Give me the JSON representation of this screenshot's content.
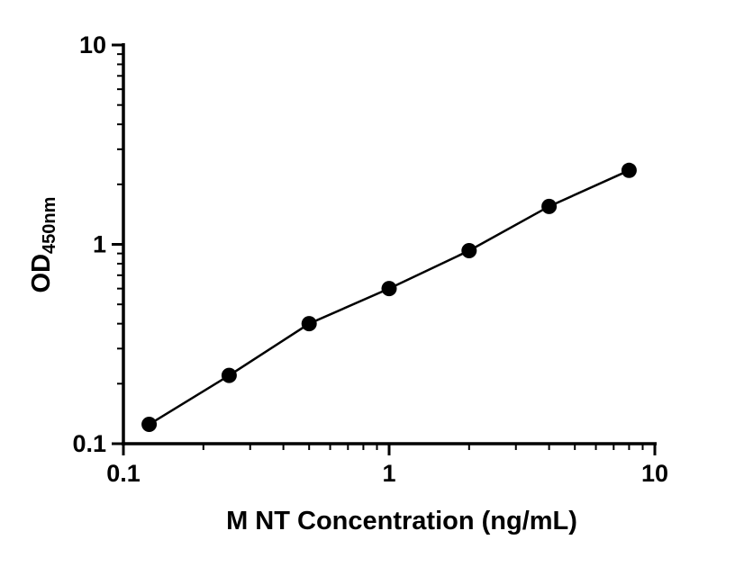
{
  "chart_data": {
    "type": "scatter",
    "title": "",
    "xlabel": "M NT Concentration (ng/mL)",
    "ylabel_main": "OD",
    "ylabel_sub": "450nm",
    "xscale": "log",
    "yscale": "log",
    "xlim": [
      0.1,
      10
    ],
    "ylim": [
      0.1,
      10
    ],
    "x": [
      0.125,
      0.25,
      0.5,
      1,
      2,
      4,
      8
    ],
    "y": [
      0.125,
      0.22,
      0.4,
      0.6,
      0.93,
      1.55,
      2.35
    ],
    "x_tick_values": [
      0.1,
      1,
      10
    ],
    "x_ticks": [
      "0.1",
      "1",
      "10"
    ],
    "y_tick_values": [
      0.1,
      1,
      10
    ],
    "y_ticks": [
      "0.1",
      "1",
      "10"
    ],
    "grid": "off",
    "legend": "none",
    "marker_color": "#000000",
    "line_color": "#000000",
    "axis_color": "#000000"
  }
}
